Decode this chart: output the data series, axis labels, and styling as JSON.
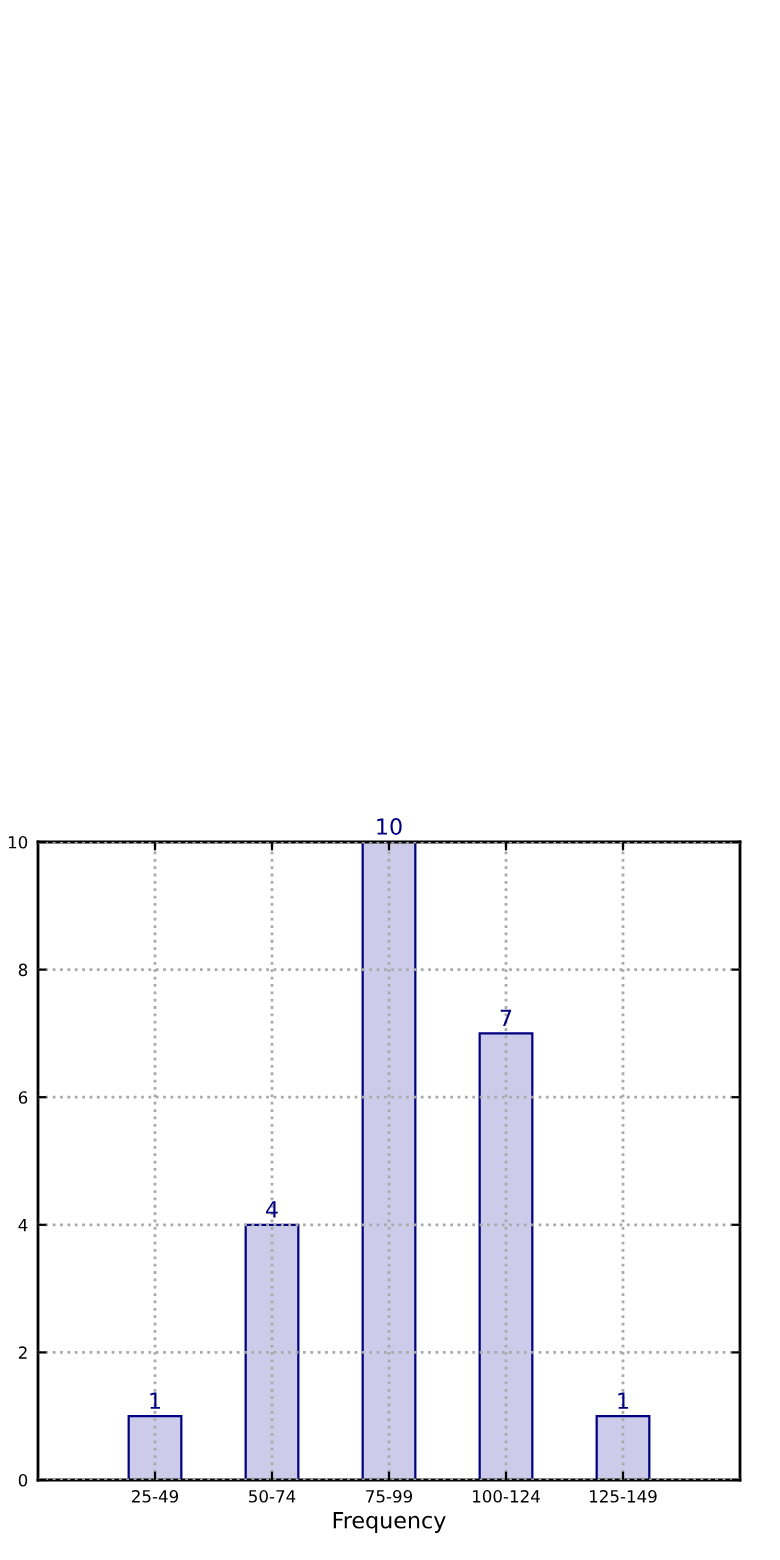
{
  "chart_data": {
    "type": "bar",
    "xlabel": "Frequency",
    "categories": [
      "25-49",
      "50-74",
      "75-99",
      "100-124",
      "125-149"
    ],
    "values": [
      1,
      4,
      10,
      7,
      1
    ],
    "color": "#ccccea",
    "ylim": [
      0,
      10
    ],
    "yticks": [
      0,
      2,
      4,
      6,
      8,
      10
    ],
    "grid": true,
    "data_labels": true
  }
}
